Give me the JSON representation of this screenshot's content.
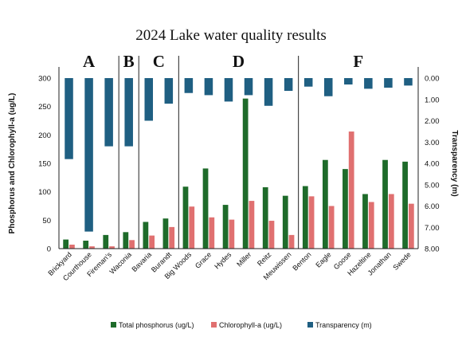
{
  "chart_data": {
    "type": "bar",
    "title": "2024 Lake water quality results",
    "ylabel_left": "Phosphorus and Chlorophyll-a (ug/L)",
    "ylabel_right": "Transparency (m)",
    "ylim_left": [
      0,
      300
    ],
    "yticks_left": [
      "0",
      "50",
      "100",
      "150",
      "200",
      "250",
      "300"
    ],
    "ylim_right": [
      0,
      8
    ],
    "yticks_right": [
      "0.00",
      "1.00",
      "2.00",
      "3.00",
      "4.00",
      "5.00",
      "6.00",
      "7.00",
      "8.00"
    ],
    "right_axis_inverted": true,
    "categories": [
      "Brickyard",
      "Courthouse",
      "Fireman's",
      "Waconia",
      "Bavaria",
      "Burandt",
      "Big Woods",
      "Grace",
      "Hydes",
      "Miller",
      "Reitz",
      "Meuwissen",
      "Benton",
      "Eagle",
      "Goose",
      "Hazeltine",
      "Jonathan",
      "Swede"
    ],
    "groups": [
      {
        "label": "A",
        "from": 0,
        "to": 2
      },
      {
        "label": "B",
        "from": 3,
        "to": 3
      },
      {
        "label": "C",
        "from": 4,
        "to": 5
      },
      {
        "label": "D",
        "from": 6,
        "to": 11
      },
      {
        "label": "F",
        "from": 12,
        "to": 17
      }
    ],
    "series": [
      {
        "name": "Total phosphorus (ug/L)",
        "axis": "left",
        "color": "#1e6b2a",
        "values": [
          16,
          14,
          24,
          29,
          47,
          53,
          109,
          141,
          77,
          264,
          108,
          93,
          110,
          156,
          140,
          96,
          156,
          153
        ]
      },
      {
        "name": "Chlorophyll-a (ug/L)",
        "axis": "left",
        "color": "#e07070",
        "values": [
          7,
          4,
          4,
          15,
          23,
          38,
          74,
          55,
          51,
          84,
          49,
          24,
          92,
          75,
          206,
          82,
          96,
          79
        ]
      },
      {
        "name": "Transparency (m)",
        "axis": "right",
        "color": "#1f5f82",
        "values": [
          3.8,
          7.2,
          3.2,
          3.2,
          2.0,
          1.2,
          0.7,
          0.8,
          1.1,
          0.8,
          1.3,
          0.6,
          0.4,
          0.85,
          0.3,
          0.5,
          0.45,
          0.35
        ]
      }
    ],
    "legend_position": "bottom",
    "grid": false
  }
}
